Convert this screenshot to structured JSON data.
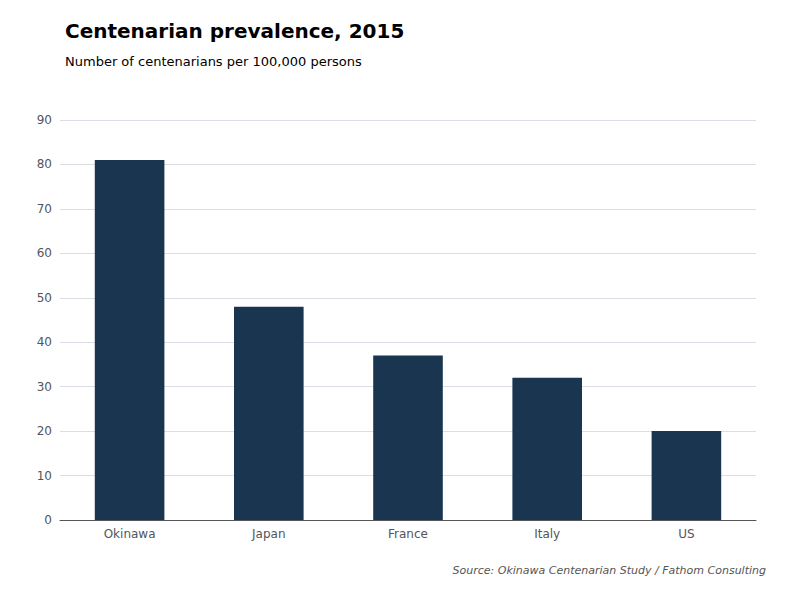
{
  "chart_data": {
    "type": "bar",
    "title": "Centenarian prevalence, 2015",
    "subtitle": "Number of centenarians per 100,000 persons",
    "source": "Source: Okinawa Centenarian Study / Fathom Consulting",
    "categories": [
      "Okinawa",
      "Japan",
      "France",
      "Italy",
      "US"
    ],
    "values": [
      81,
      48,
      37,
      32,
      20
    ],
    "color": "#1a3550",
    "ylim": [
      0,
      90
    ],
    "yticks": [
      0,
      10,
      20,
      30,
      40,
      50,
      60,
      70,
      80,
      90
    ],
    "grid": true
  }
}
